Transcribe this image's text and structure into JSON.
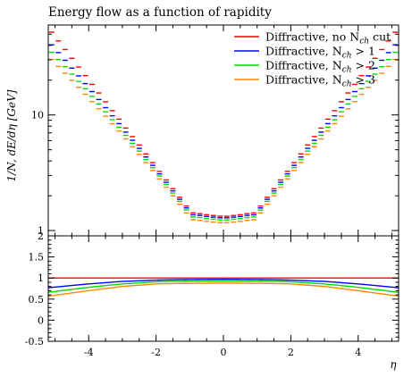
{
  "chart_data": {
    "type": "line",
    "title": "Energy flow as a function of rapidity",
    "xlabel": "η",
    "ylabel": "1/N, dE/dη [GeV]",
    "x_range": [
      -5.2,
      5.2
    ],
    "main_ylim": [
      0.9,
      60
    ],
    "main_yscale": "log",
    "ratio_ylim": [
      -0.5,
      2.0
    ],
    "x_ticks": [
      -4,
      -2,
      0,
      2,
      4
    ],
    "x_tick_labels": [
      "-4",
      "-2",
      "0",
      "2",
      "4"
    ],
    "main_y_ticks": [
      1,
      10
    ],
    "main_y_tick_labels": [
      "1",
      "10"
    ],
    "ratio_y_ticks": [
      -0.5,
      0,
      0.5,
      1,
      1.5,
      2
    ],
    "ratio_y_tick_labels": [
      "-0.5",
      "0",
      "0.5",
      "1",
      "1.5",
      "2"
    ],
    "bin_edges": [
      -5.2,
      -5.0,
      -4.8,
      -4.6,
      -4.4,
      -4.2,
      -4.0,
      -3.8,
      -3.6,
      -3.4,
      -3.2,
      -3.0,
      -2.8,
      -2.6,
      -2.4,
      -2.2,
      -2.0,
      -1.8,
      -1.6,
      -1.4,
      -1.2,
      -1.0,
      -0.8,
      -0.6,
      -0.4,
      -0.2,
      0.0,
      0.2,
      0.4,
      0.6,
      0.8,
      1.0,
      1.2,
      1.4,
      1.6,
      1.8,
      2.0,
      2.2,
      2.4,
      2.6,
      2.8,
      3.0,
      3.2,
      3.4,
      3.6,
      3.8,
      4.0,
      4.2,
      4.4,
      4.6,
      4.8,
      5.0,
      5.2
    ],
    "reference_values": [
      52.0,
      43.7,
      36.8,
      30.9,
      26.0,
      21.9,
      18.4,
      15.5,
      13.0,
      10.9,
      9.2,
      7.7,
      6.5,
      5.5,
      4.6,
      3.87,
      3.25,
      2.74,
      2.3,
      1.94,
      1.63,
      1.42,
      1.4,
      1.37,
      1.35,
      1.33,
      1.33,
      1.35,
      1.37,
      1.4,
      1.42,
      1.63,
      1.94,
      2.3,
      2.74,
      3.25,
      3.87,
      4.6,
      5.5,
      6.5,
      7.7,
      9.2,
      10.9,
      13.0,
      15.5,
      18.4,
      21.9,
      26.0,
      30.9,
      36.8,
      43.7,
      52.0
    ],
    "ratio_curve": {
      "eta": [
        0,
        1.4,
        2.0,
        3.0,
        4.0,
        5.2
      ],
      "Diffractive, no $N_{ch}$ cut": [
        1.0,
        1.0,
        1.0,
        1.0,
        1.0,
        1.0
      ],
      "Diffractive, $N_{ch} > 1$": [
        0.97,
        0.96,
        0.95,
        0.92,
        0.86,
        0.77
      ],
      "Diffractive, $N_{ch} > 2$": [
        0.93,
        0.92,
        0.91,
        0.86,
        0.78,
        0.66
      ],
      "Diffractive, $N_{ch} > 3$": [
        0.88,
        0.87,
        0.86,
        0.8,
        0.7,
        0.57
      ]
    },
    "series": [
      {
        "name": "Diffractive, no N",
        "name_sub": "ch",
        "name_tail": " cut",
        "color": "#ff0000"
      },
      {
        "name": "Diffractive, N",
        "name_sub": "ch",
        "name_tail": " > 1",
        "color": "#0000ff"
      },
      {
        "name": "Diffractive, N",
        "name_sub": "ch",
        "name_tail": " > 2",
        "color": "#00dd00"
      },
      {
        "name": "Diffractive, N",
        "name_sub": "ch",
        "name_tail": " > 3",
        "color": "#ff8800"
      }
    ],
    "ratio_keys": [
      "Diffractive, no $N_{ch}$ cut",
      "Diffractive, $N_{ch} > 1$",
      "Diffractive, $N_{ch} > 2$",
      "Diffractive, $N_{ch} > 3$"
    ],
    "legend_position": "top-right",
    "grid": false
  }
}
